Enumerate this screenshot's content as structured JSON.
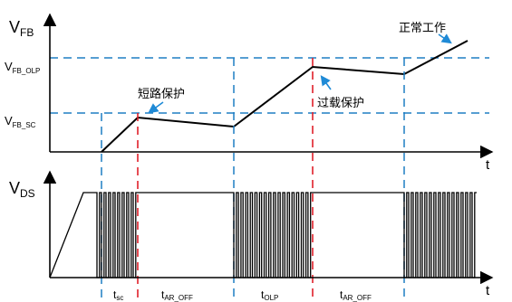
{
  "axes": {
    "top_y_main": "V",
    "top_y_sub": "FB",
    "bottom_y_main": "V",
    "bottom_y_sub": "DS",
    "time": "t"
  },
  "levels": {
    "olp_main": "V",
    "olp_sub": "FB_OLP",
    "sc_main": "V",
    "sc_sub": "FB_SC"
  },
  "annotations": {
    "short_circuit_protection": "短路保护",
    "overload_protection": "过载保护",
    "normal_operation": "正常工作"
  },
  "intervals": [
    {
      "main": "t",
      "sub": "sc"
    },
    {
      "main": "t",
      "sub": "AR_OFF"
    },
    {
      "main": "t",
      "sub": "OLP"
    },
    {
      "main": "t",
      "sub": "AR_OFF"
    }
  ],
  "colors": {
    "signal": "#000000",
    "threshold": "#1f7ec4",
    "marker_red": "#e0202a",
    "marker_blue": "#1f7ec4",
    "arrow": "#1f8ad6"
  }
}
